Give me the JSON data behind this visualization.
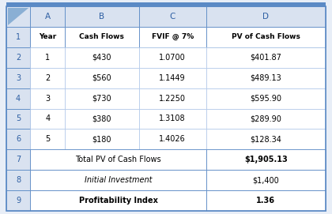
{
  "col_letters": [
    "A",
    "B",
    "C",
    "D"
  ],
  "header_row": [
    "Year",
    "Cash Flows",
    "FVIF @ 7%",
    "PV of Cash Flows"
  ],
  "data_rows": [
    [
      "1",
      "$430",
      "1.0700",
      "$401.87"
    ],
    [
      "2",
      "$560",
      "1.1449",
      "$489.13"
    ],
    [
      "3",
      "$730",
      "1.2250",
      "$595.90"
    ],
    [
      "4",
      "$380",
      "1.3108",
      "$289.90"
    ],
    [
      "5",
      "$180",
      "1.4026",
      "$128.34"
    ]
  ],
  "summary_rows": [
    [
      "Total PV of Cash Flows",
      "$1,905.13",
      false,
      false,
      true,
      false
    ],
    [
      "Initial Investment",
      "$1,400",
      false,
      true,
      false,
      false
    ],
    [
      "Profitability Index",
      "1.36",
      true,
      false,
      true,
      false
    ]
  ],
  "row_numbers": [
    "1",
    "2",
    "3",
    "4",
    "5",
    "6",
    "7",
    "8",
    "9"
  ],
  "col_header_bg": "#d9e2f0",
  "row_header_bg": "#d9e2f0",
  "cell_bg": "#ffffff",
  "header_text_color": "#2e5fa3",
  "data_text_color": "#000000",
  "border_light": "#aec6e8",
  "border_dark": "#5b8ac5",
  "fig_bg": "#e8eef7",
  "triangle_color": "#8aafd4"
}
